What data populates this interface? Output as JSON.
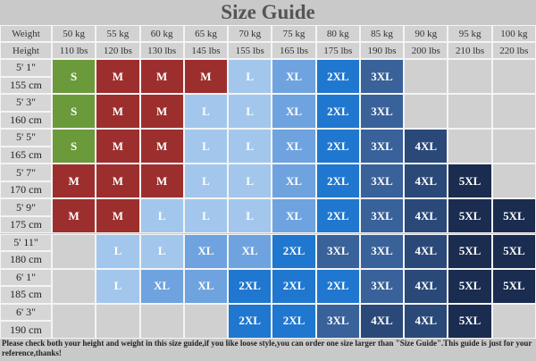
{
  "title": "Size Guide",
  "header": {
    "weight_label": "Weight",
    "height_label": "Height",
    "kg": [
      "50 kg",
      "55 kg",
      "60 kg",
      "65 kg",
      "70 kg",
      "75 kg",
      "80 kg",
      "85 kg",
      "90 kg",
      "95 kg",
      "100 kg"
    ],
    "lbs": [
      "110 lbs",
      "120 lbs",
      "130 lbs",
      "145 lbs",
      "155 lbs",
      "165 lbs",
      "175 lbs",
      "190 lbs",
      "200 lbs",
      "210 lbs",
      "220 lbs"
    ]
  },
  "rows": [
    {
      "ft": "5' 1\"",
      "cm": "155 cm",
      "sizes": [
        "S",
        "M",
        "M",
        "M",
        "L",
        "XL",
        "2XL",
        "3XL",
        null,
        null,
        null
      ]
    },
    {
      "ft": "5' 3\"",
      "cm": "160 cm",
      "sizes": [
        "S",
        "M",
        "M",
        "L",
        "L",
        "XL",
        "2XL",
        "3XL",
        null,
        null,
        null
      ]
    },
    {
      "ft": "5' 5\"",
      "cm": "165 cm",
      "sizes": [
        "S",
        "M",
        "M",
        "L",
        "L",
        "XL",
        "2XL",
        "3XL",
        "4XL",
        null,
        null
      ]
    },
    {
      "ft": "5' 7\"",
      "cm": "170 cm",
      "sizes": [
        "M",
        "M",
        "M",
        "L",
        "L",
        "XL",
        "2XL",
        "3XL",
        "4XL",
        "5XL",
        null
      ]
    },
    {
      "ft": "5' 9\"",
      "cm": "175 cm",
      "sizes": [
        "M",
        "M",
        "L",
        "L",
        "L",
        "XL",
        "2XL",
        "3XL",
        "4XL",
        "5XL",
        "5XL"
      ]
    },
    {
      "ft": "5' 11\"",
      "cm": "180 cm",
      "sizes": [
        null,
        "L",
        "L",
        "XL",
        "XL",
        "2XL",
        "3XL",
        "3XL",
        "4XL",
        "5XL",
        "5XL"
      ]
    },
    {
      "ft": "6' 1\"",
      "cm": "185 cm",
      "sizes": [
        null,
        "L",
        "XL",
        "XL",
        "2XL",
        "2XL",
        "2XL",
        "3XL",
        "4XL",
        "5XL",
        "5XL"
      ]
    },
    {
      "ft": "6' 3\"",
      "cm": "190 cm",
      "sizes": [
        null,
        null,
        null,
        null,
        "2XL",
        "2XL",
        "3XL",
        "4XL",
        "4XL",
        "5XL",
        null
      ]
    }
  ],
  "footer": "Please check both your height and weight in this size guide,if you like loose style,you can order one size larger than \"Size Guide\".This guide is just for your reference,thanks!"
}
